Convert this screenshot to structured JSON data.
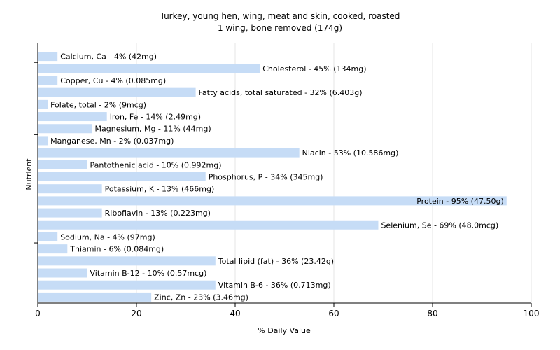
{
  "chart_data": {
    "type": "bar",
    "orientation": "horizontal",
    "title": "Turkey, young hen, wing, meat and skin, cooked, roasted",
    "subtitle": "1 wing, bone removed (174g)",
    "xlabel": "% Daily Value",
    "ylabel": "Nutrient",
    "xlim": [
      0,
      100
    ],
    "xticks": [
      "0",
      "20",
      "40",
      "60",
      "80",
      "100"
    ],
    "grid": true,
    "bar_color": "#c6dcf6",
    "categories": [
      "Calcium, Ca",
      "Cholesterol",
      "Copper, Cu",
      "Fatty acids, total saturated",
      "Folate, total",
      "Iron, Fe",
      "Magnesium, Mg",
      "Manganese, Mn",
      "Niacin",
      "Pantothenic acid",
      "Phosphorus, P",
      "Potassium, K",
      "Protein",
      "Riboflavin",
      "Selenium, Se",
      "Sodium, Na",
      "Thiamin",
      "Total lipid (fat)",
      "Vitamin B-12",
      "Vitamin B-6",
      "Zinc, Zn"
    ],
    "values": [
      4,
      45,
      4,
      32,
      2,
      14,
      11,
      2,
      53,
      10,
      34,
      13,
      95,
      13,
      69,
      4,
      6,
      36,
      10,
      36,
      23
    ],
    "bar_labels": [
      "Calcium, Ca - 4% (42mg)",
      "Cholesterol - 45% (134mg)",
      "Copper, Cu - 4% (0.085mg)",
      "Fatty acids, total saturated - 32% (6.403g)",
      "Folate, total - 2% (9mcg)",
      "Iron, Fe - 14% (2.49mg)",
      "Magnesium, Mg - 11% (44mg)",
      "Manganese, Mn - 2% (0.037mg)",
      "Niacin - 53% (10.586mg)",
      "Pantothenic acid - 10% (0.992mg)",
      "Phosphorus, P - 34% (345mg)",
      "Potassium, K - 13% (466mg)",
      "Protein - 95% (47.50g)",
      "Riboflavin - 13% (0.223mg)",
      "Selenium, Se - 69% (48.0mcg)",
      "Sodium, Na - 4% (97mg)",
      "Thiamin - 6% (0.084mg)",
      "Total lipid (fat) - 36% (23.42g)",
      "Vitamin B-12 - 10% (0.57mcg)",
      "Vitamin B-6 - 36% (0.713mg)",
      "Zinc, Zn - 23% (3.46mg)"
    ]
  }
}
